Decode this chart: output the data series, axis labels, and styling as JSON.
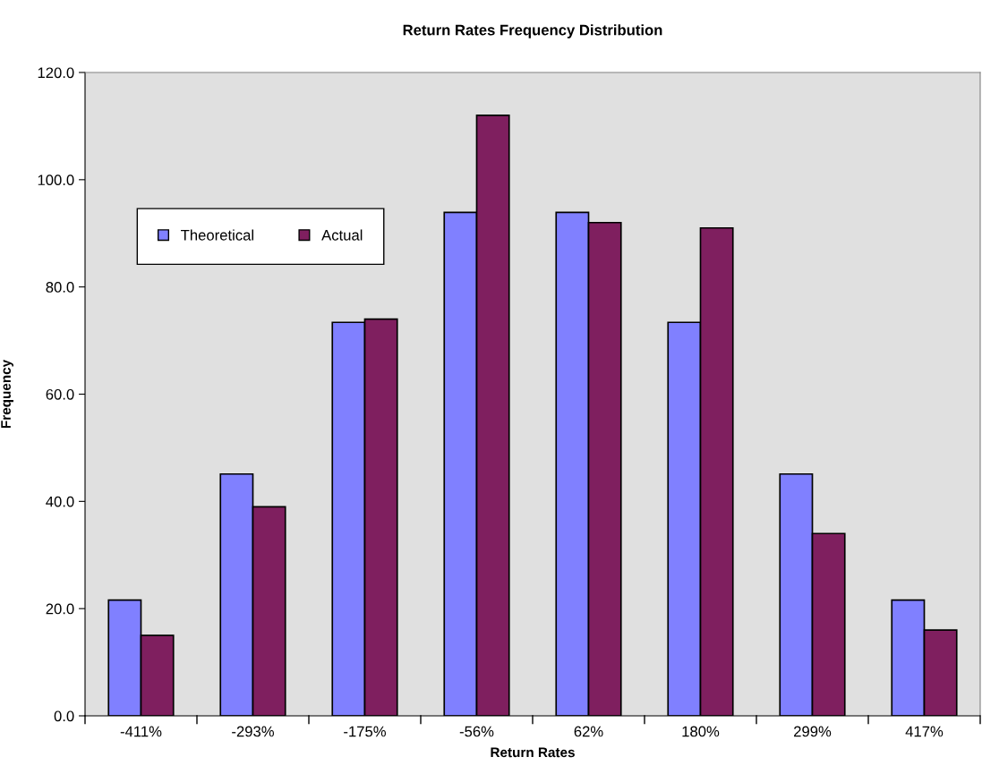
{
  "chart_data": {
    "type": "bar",
    "title": "Return Rates Frequency Distribution",
    "xlabel": "Return Rates",
    "ylabel": "Frequency",
    "categories": [
      "-411%",
      "-293%",
      "-175%",
      "-56%",
      "62%",
      "180%",
      "299%",
      "417%"
    ],
    "series": [
      {
        "name": "Theoretical",
        "color": "#8080ff",
        "values": [
          21.6,
          45.1,
          73.4,
          93.9,
          93.9,
          73.4,
          45.1,
          21.6
        ]
      },
      {
        "name": "Actual",
        "color": "#7f1f5f",
        "values": [
          15,
          39,
          74,
          112,
          92,
          91,
          34,
          16
        ]
      }
    ],
    "ylim": [
      0,
      120
    ],
    "yticks": [
      {
        "value": 0,
        "label": "0.0"
      },
      {
        "value": 20,
        "label": "20.0"
      },
      {
        "value": 40,
        "label": "40.0"
      },
      {
        "value": 60,
        "label": "60.0"
      },
      {
        "value": 80,
        "label": "80.0"
      },
      {
        "value": 100,
        "label": "100.0"
      },
      {
        "value": 120,
        "label": "120.0"
      }
    ],
    "grid": false,
    "legend": "top left"
  }
}
